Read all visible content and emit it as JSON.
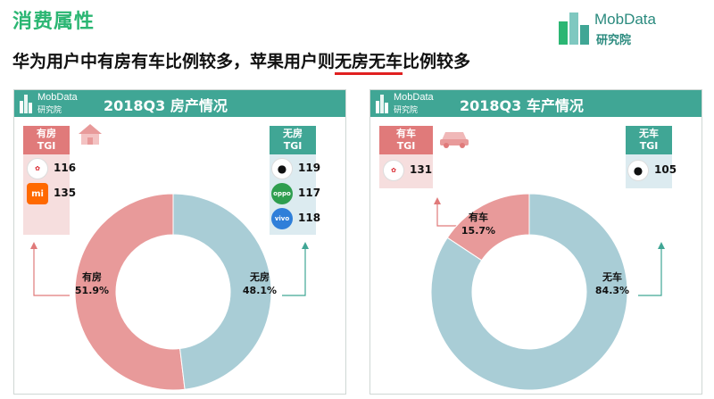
{
  "page": {
    "section_title": "消费属性",
    "headline_prefix": "华为用户中有房有车比例较多，苹果用户则",
    "headline_underlined": "无房无车",
    "headline_suffix": "比例较多",
    "brand_name": "MobData",
    "brand_sub": "研究院"
  },
  "panels": [
    {
      "title": "2018Q3   房产情况",
      "left_box": {
        "title_line1": "有房",
        "title_line2": "TGI",
        "items": [
          {
            "brand": "华为",
            "icon": "huawei-logo-icon",
            "value": "116"
          },
          {
            "brand": "小米",
            "icon": "xiaomi-logo-icon",
            "value": "135"
          }
        ]
      },
      "right_box": {
        "title_line1": "无房",
        "title_line2": "TGI",
        "items": [
          {
            "brand": "苹果",
            "icon": "apple-logo-icon",
            "value": "119"
          },
          {
            "brand": "OPPO",
            "icon": "oppo-logo-icon",
            "value": "117"
          },
          {
            "brand": "vivo",
            "icon": "vivo-logo-icon",
            "value": "118"
          }
        ]
      }
    },
    {
      "title": "2018Q3   车产情况",
      "left_box": {
        "title_line1": "有车",
        "title_line2": "TGI",
        "items": [
          {
            "brand": "华为",
            "icon": "huawei-logo-icon",
            "value": "131"
          }
        ]
      },
      "right_box": {
        "title_line1": "无车",
        "title_line2": "TGI",
        "items": [
          {
            "brand": "苹果",
            "icon": "apple-logo-icon",
            "value": "105"
          }
        ]
      }
    }
  ],
  "chart_data": [
    {
      "type": "pie",
      "title": "2018Q3 房产情况",
      "slices": [
        {
          "label": "有房",
          "value": 51.9,
          "display": "51.9%",
          "color": "#e89a9a"
        },
        {
          "label": "无房",
          "value": 48.1,
          "display": "48.1%",
          "color": "#a9cdd6"
        }
      ]
    },
    {
      "type": "pie",
      "title": "2018Q3 车产情况",
      "slices": [
        {
          "label": "有车",
          "value": 15.7,
          "display": "15.7%",
          "color": "#e89a9a"
        },
        {
          "label": "无车",
          "value": 84.3,
          "display": "84.3%",
          "color": "#a9cdd6"
        }
      ]
    }
  ],
  "colors": {
    "accent_green": "#2bb673",
    "header_teal": "#40a695",
    "tgi_red": "#e07a7a",
    "underline_red": "#e02020"
  }
}
